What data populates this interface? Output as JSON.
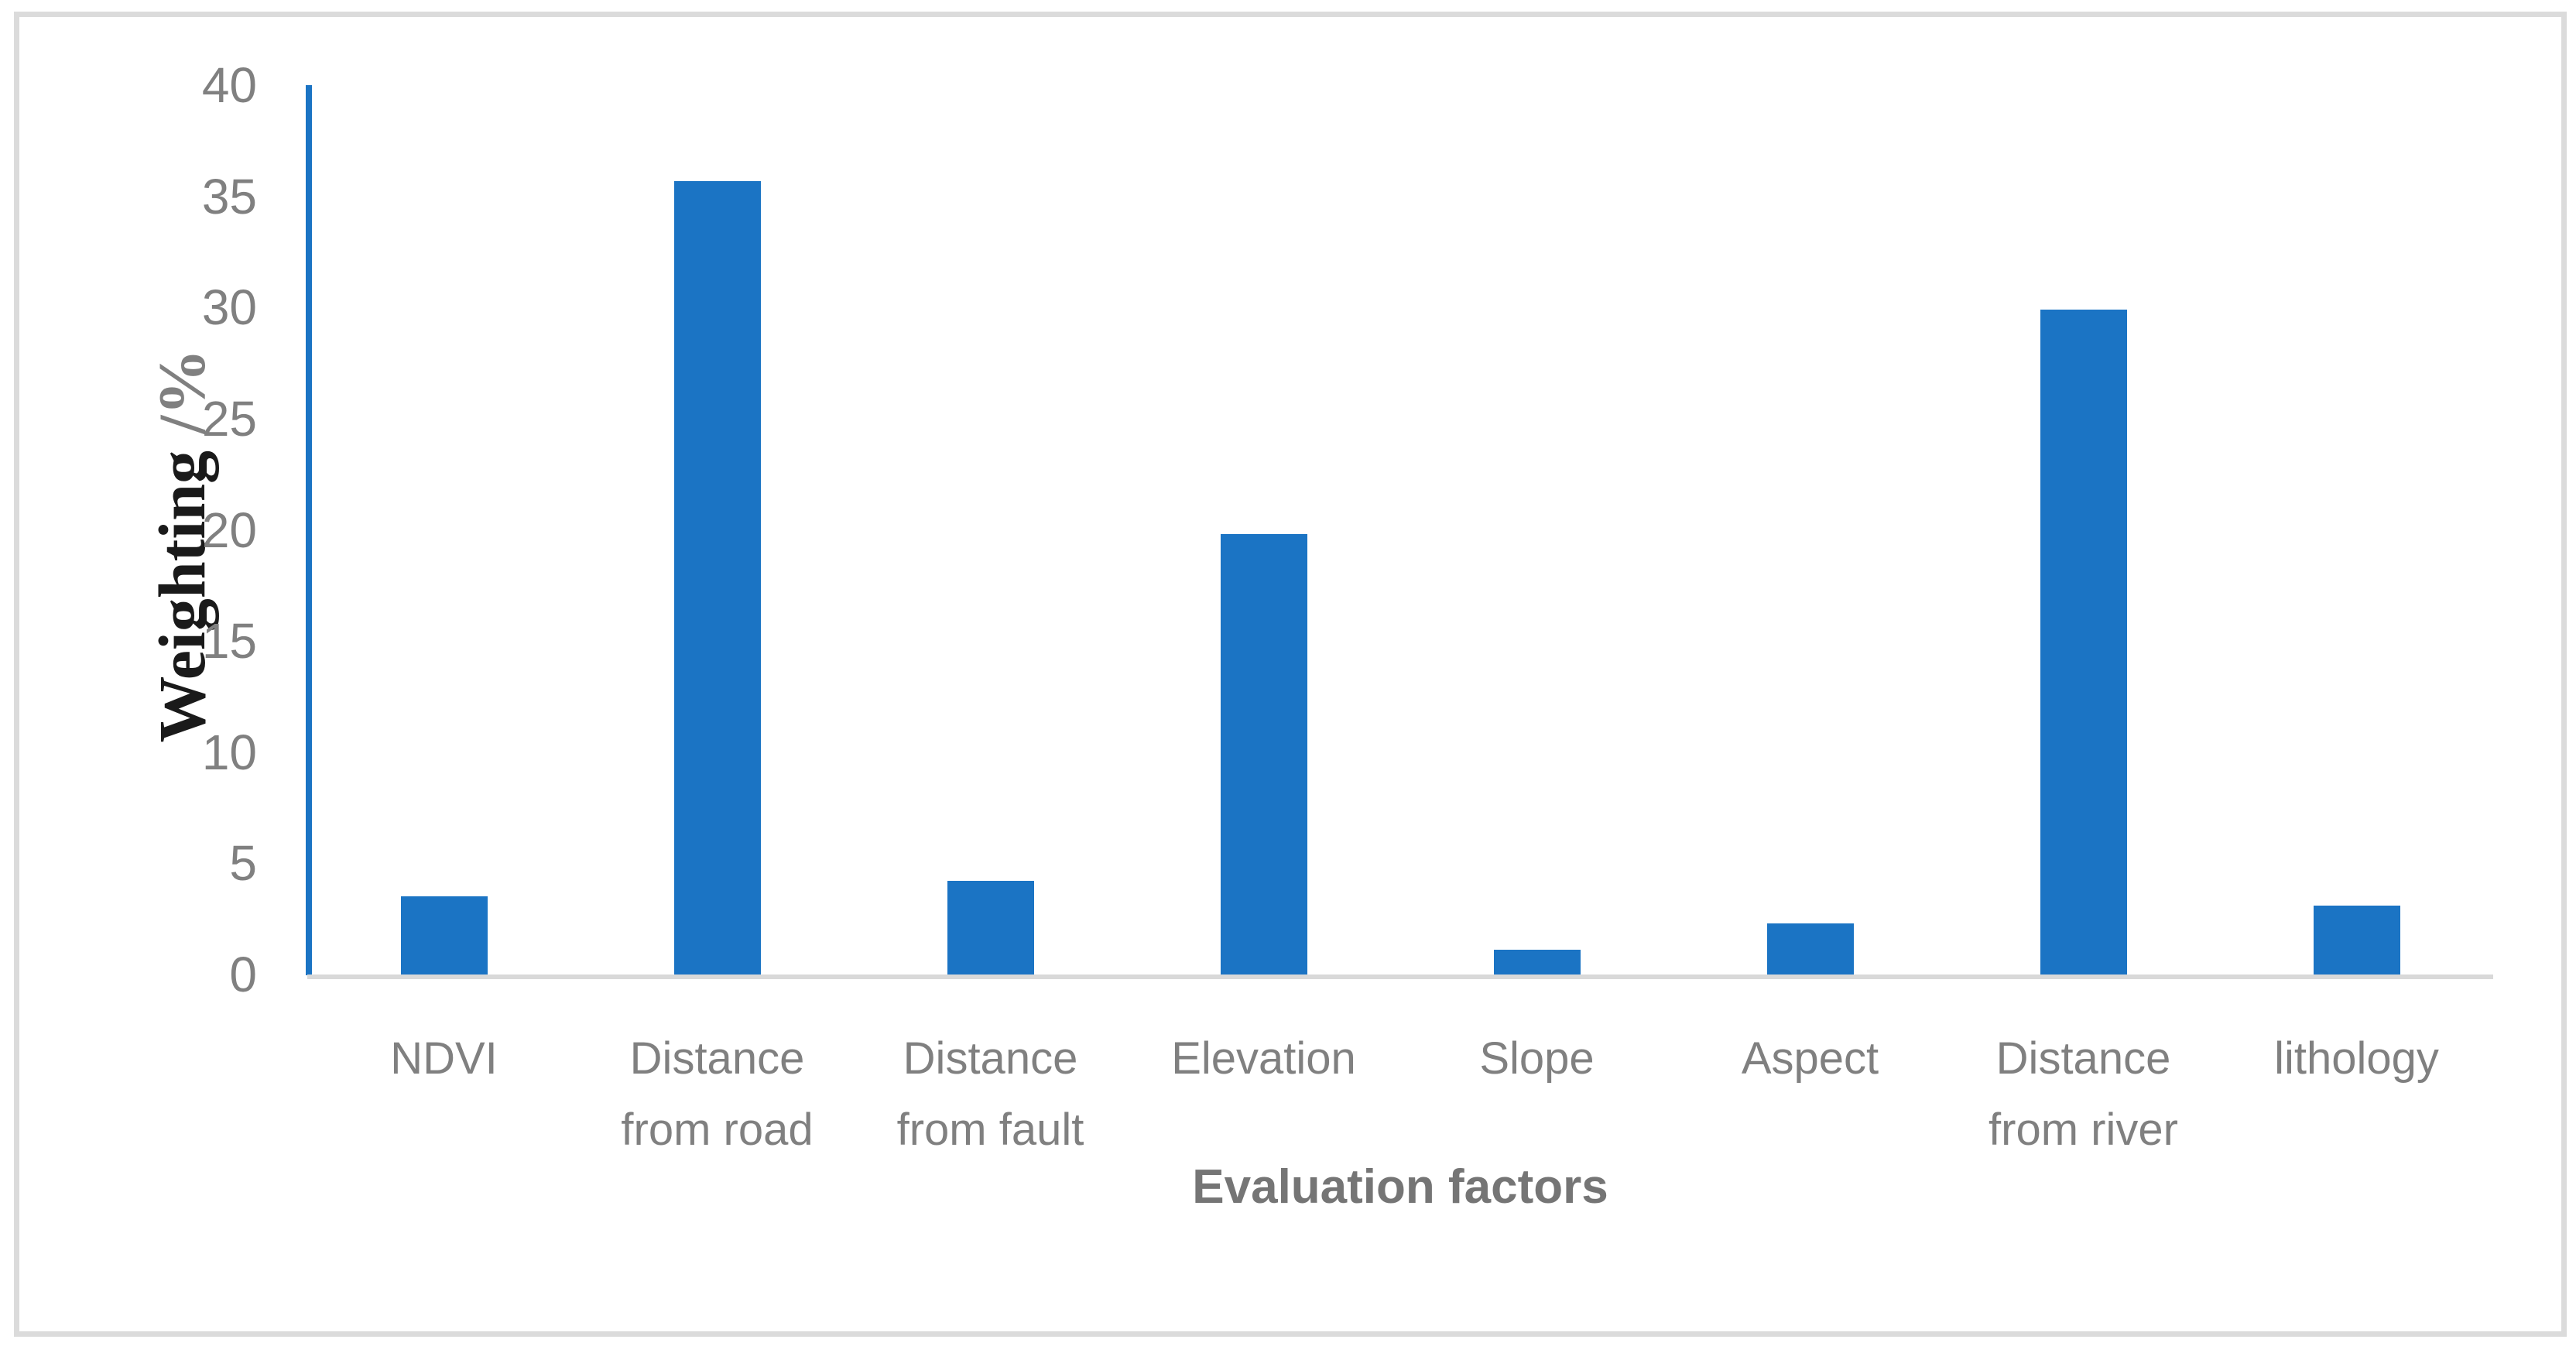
{
  "figure": {
    "y_axis_title_main": "Weighting",
    "y_axis_title_unit": " /%",
    "x_axis_title": "Evaluation factors"
  },
  "chart_data": {
    "type": "bar",
    "title": "",
    "xlabel": "Evaluation factors",
    "ylabel": "Weighting /%",
    "categories": [
      "NDVI",
      "Distance from road",
      "Distance from fault",
      "Elevation",
      "Slope",
      "Aspect",
      "Distance from river",
      "lithology"
    ],
    "values": [
      3.5,
      35.7,
      4.2,
      19.8,
      1.1,
      2.3,
      29.9,
      3.1
    ],
    "ylim": [
      0,
      40
    ],
    "yticks": [
      40,
      35,
      30,
      25,
      20,
      15,
      10,
      5,
      0
    ],
    "grid": false,
    "legend": "none",
    "bar_color": "#1B74C4",
    "y_axis_line_color": "#1B74C4",
    "x_axis_line_color": "#D9D9D9",
    "tick_label_color": "#808080",
    "frame_color": "#DBDBDB"
  }
}
